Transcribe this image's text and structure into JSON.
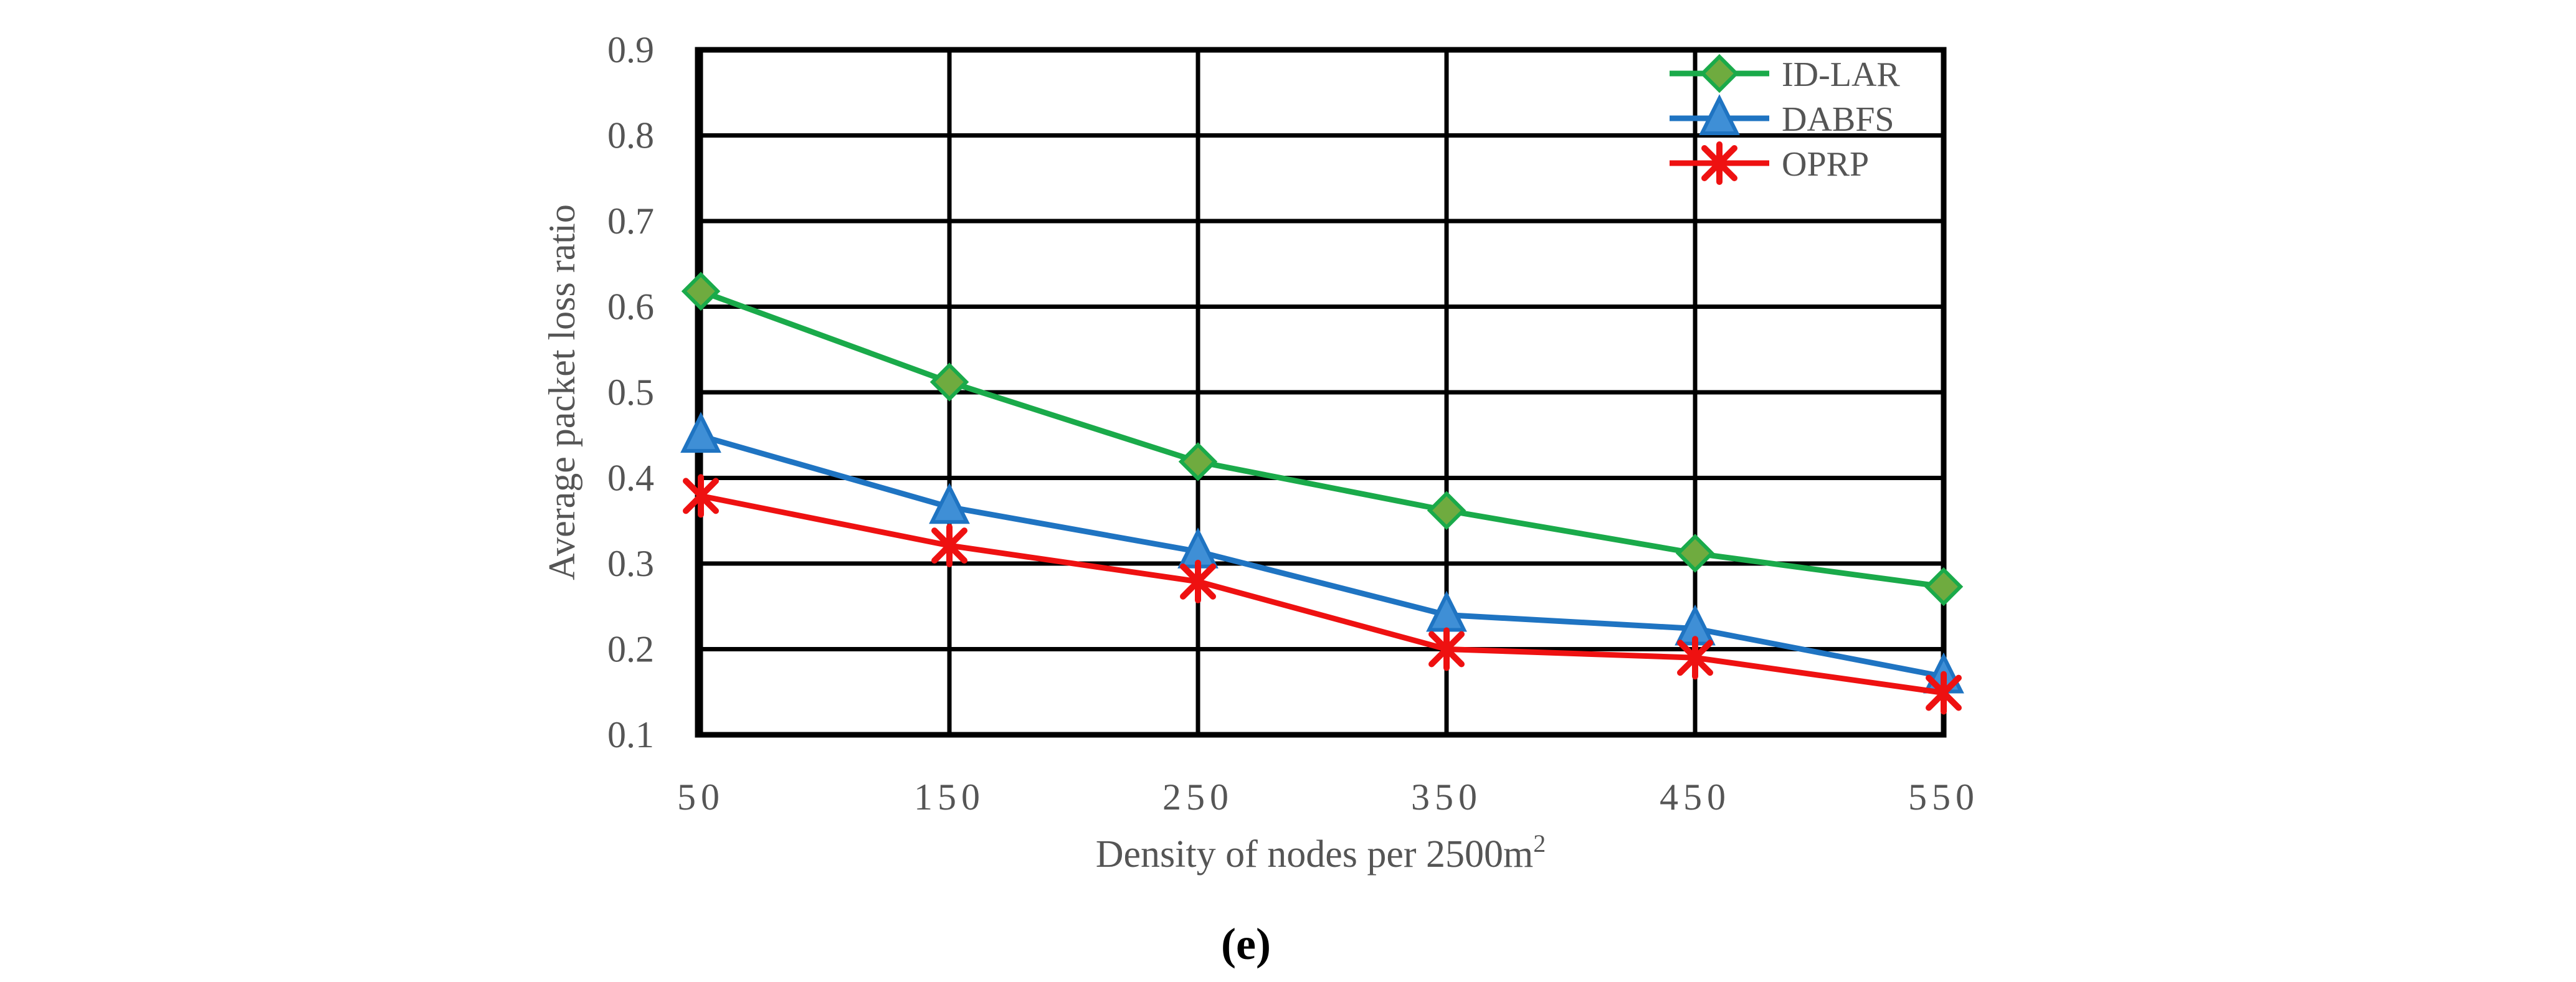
{
  "chart_data": {
    "type": "line",
    "title": "",
    "xlabel": "Density of nodes per 2500m",
    "xlabel_superscript": "2",
    "ylabel": "Average packet loss ratio",
    "categories": [
      50,
      150,
      250,
      350,
      450,
      550
    ],
    "x_tick_labels": [
      "50",
      "150",
      "250",
      "350",
      "450",
      "550"
    ],
    "ylim": [
      0.1,
      0.9
    ],
    "y_tick_labels": [
      "0.9",
      "0.8",
      "0.7",
      "0.6",
      "0.5",
      "0.4",
      "0.3",
      "0.2",
      "0.1"
    ],
    "grid": true,
    "legend_position": "top-right",
    "series": [
      {
        "name": "ID-LAR",
        "color": "#1aaa4a",
        "marker": "diamond",
        "marker_fill": "#6fab3f",
        "values": [
          0.618,
          0.512,
          0.419,
          0.362,
          0.312,
          0.273
        ]
      },
      {
        "name": "DABFS",
        "color": "#1f74c2",
        "marker": "triangle",
        "marker_fill": "#3f8fd6",
        "values": [
          0.449,
          0.366,
          0.314,
          0.24,
          0.224,
          0.168
        ]
      },
      {
        "name": "OPRP",
        "color": "#ee1111",
        "marker": "star",
        "marker_fill": "#ee1111",
        "values": [
          0.379,
          0.321,
          0.279,
          0.2,
          0.19,
          0.149
        ]
      }
    ]
  },
  "caption": "(e)"
}
